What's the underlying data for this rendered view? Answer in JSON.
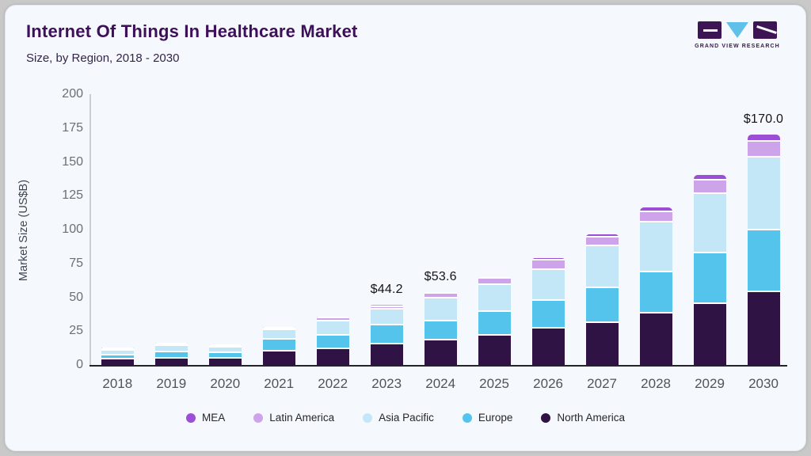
{
  "header": {
    "title": "Internet Of Things In Healthcare Market",
    "subtitle": "Size, by Region, 2018 - 2030"
  },
  "logo": {
    "caption": "GRAND VIEW RESEARCH",
    "block_color": "#3d1554",
    "triangle_color": "#5fc0e9"
  },
  "colors": {
    "card_background": "#f5f8fc",
    "outer_background": "#c9c9c9",
    "title_text": "#3d1059",
    "axis_line": "#23232a"
  },
  "chart_data": {
    "type": "bar",
    "stacked": true,
    "title": "Internet Of Things In Healthcare Market Size, by Region, 2018 - 2030",
    "xlabel": "",
    "ylabel": "Market Size (US$B)",
    "ylim": [
      0,
      200
    ],
    "yticks": [
      0,
      25,
      50,
      75,
      100,
      125,
      150,
      175,
      200
    ],
    "grid": false,
    "legend_position": "bottom",
    "categories": [
      "2018",
      "2019",
      "2020",
      "2021",
      "2022",
      "2023",
      "2024",
      "2025",
      "2026",
      "2027",
      "2028",
      "2029",
      "2030"
    ],
    "series": [
      {
        "name": "North America",
        "color": "#2e1344",
        "values": [
          4.9,
          5.4,
          5.3,
          10.4,
          12.0,
          15.1,
          17.9,
          21.4,
          26.8,
          31.2,
          38.1,
          44.9,
          53.9
        ]
      },
      {
        "name": "Europe",
        "color": "#55c4ed",
        "values": [
          3.5,
          4.7,
          4.2,
          9.1,
          10.0,
          14.2,
          14.2,
          17.6,
          20.5,
          25.8,
          30.6,
          37.7,
          45.8
        ]
      },
      {
        "name": "Asia Pacific",
        "color": "#c4e7f8",
        "values": [
          4.0,
          5.5,
          4.6,
          6.9,
          10.3,
          11.4,
          17.0,
          20.3,
          23.0,
          30.8,
          36.3,
          43.9,
          53.5
        ]
      },
      {
        "name": "Latin America",
        "color": "#cda3e9",
        "values": [
          0.5,
          0.8,
          0.9,
          1.4,
          2.6,
          2.3,
          3.3,
          4.4,
          6.8,
          6.3,
          7.6,
          9.7,
          11.7
        ]
      },
      {
        "name": "MEA",
        "color": "#9c4ed6",
        "values": [
          0.2,
          0.2,
          0.3,
          0.5,
          1.0,
          1.2,
          1.2,
          1.4,
          2.0,
          2.5,
          4.0,
          4.3,
          5.1
        ]
      }
    ],
    "annotations": [
      {
        "category": "2023",
        "label": "$44.2"
      },
      {
        "category": "2024",
        "label": "$53.6"
      },
      {
        "category": "2030",
        "label": "$170.0"
      }
    ],
    "legend_order": [
      "MEA",
      "Latin America",
      "Asia Pacific",
      "Europe",
      "North America"
    ]
  }
}
